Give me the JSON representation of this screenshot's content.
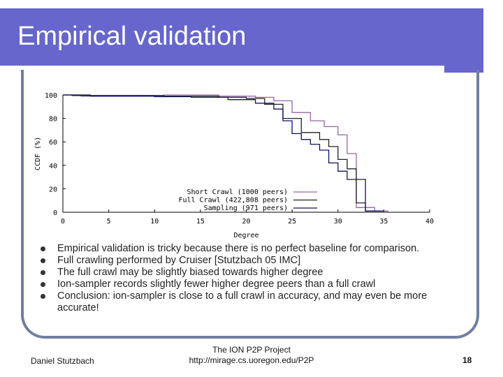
{
  "slide": {
    "title": "Empirical validation",
    "bullets": [
      "Empirical validation is tricky because there is no perfect baseline for comparison.",
      "Full crawling performed by Cruiser [Stutzbach 05 IMC]",
      "The full crawl may be slightly biased towards higher degree",
      "Ion-sampler records slightly fewer higher degree peers than a full crawl",
      "Conclusion: ion-sampler is close to a full crawl in accuracy, and may even be more accurate!"
    ],
    "footer": {
      "author": "Daniel Stutzbach",
      "project": "The ION P2P Project",
      "url": "http://mirage.cs.uoregon.edu/P2P",
      "page": "18"
    }
  },
  "colors": {
    "title_bar": "#6666cc",
    "frame": "#6f7fa0",
    "short_crawl": "#9966aa",
    "full_crawl": "#222222",
    "sampling": "#111166"
  },
  "chart_data": {
    "type": "line",
    "title": "",
    "xlabel": "Degree",
    "ylabel": "CCDF (%)",
    "xlim": [
      0,
      40
    ],
    "ylim": [
      0,
      100
    ],
    "xticks": [
      0,
      5,
      10,
      15,
      20,
      25,
      30,
      35,
      40
    ],
    "yticks": [
      0,
      20,
      40,
      60,
      80,
      100
    ],
    "legend_position": "bottom-right",
    "series": [
      {
        "name": "Short Crawl (1000 peers)",
        "x": [
          0,
          2,
          2,
          11,
          11,
          17,
          17,
          21,
          21,
          23,
          23,
          25,
          25,
          27,
          27,
          28.5,
          28.5,
          30,
          30,
          31,
          31,
          32,
          32,
          34,
          34,
          35.5
        ],
        "y": [
          100,
          100,
          99,
          99,
          100,
          100,
          99,
          99,
          98,
          98,
          95,
          95,
          85,
          85,
          78,
          78,
          73,
          73,
          66,
          66,
          50,
          50,
          4,
          4,
          1,
          1
        ]
      },
      {
        "name": "Full Crawl (422,808 peers)",
        "x": [
          0,
          3,
          3,
          11,
          11,
          17,
          17,
          20,
          20,
          22,
          22,
          24,
          24,
          26,
          26,
          28,
          28,
          29,
          29,
          30,
          30,
          31,
          31,
          32,
          32,
          33,
          33,
          34.5
        ],
        "y": [
          100,
          100,
          99.5,
          99.5,
          99,
          99,
          98,
          98,
          97,
          97,
          92,
          92,
          80,
          80,
          68,
          68,
          62,
          62,
          56,
          56,
          45,
          45,
          37,
          37,
          8,
          8,
          1,
          1
        ]
      },
      {
        "name": "Sampling (971 peers)",
        "x": [
          0,
          1,
          1,
          3,
          3,
          10,
          10,
          14,
          14,
          18,
          18,
          21,
          21,
          23,
          23,
          24,
          24,
          25,
          25,
          26,
          26,
          27,
          27,
          28,
          28,
          29,
          29,
          30,
          30,
          31,
          31,
          33,
          33,
          35
        ],
        "y": [
          100,
          100,
          99.5,
          99.5,
          99,
          99,
          98.5,
          98.5,
          98,
          98,
          96,
          96,
          93,
          93,
          88,
          88,
          78,
          78,
          67,
          67,
          62,
          62,
          58,
          58,
          53,
          53,
          42,
          42,
          35,
          35,
          28,
          28,
          1,
          1
        ]
      }
    ]
  }
}
